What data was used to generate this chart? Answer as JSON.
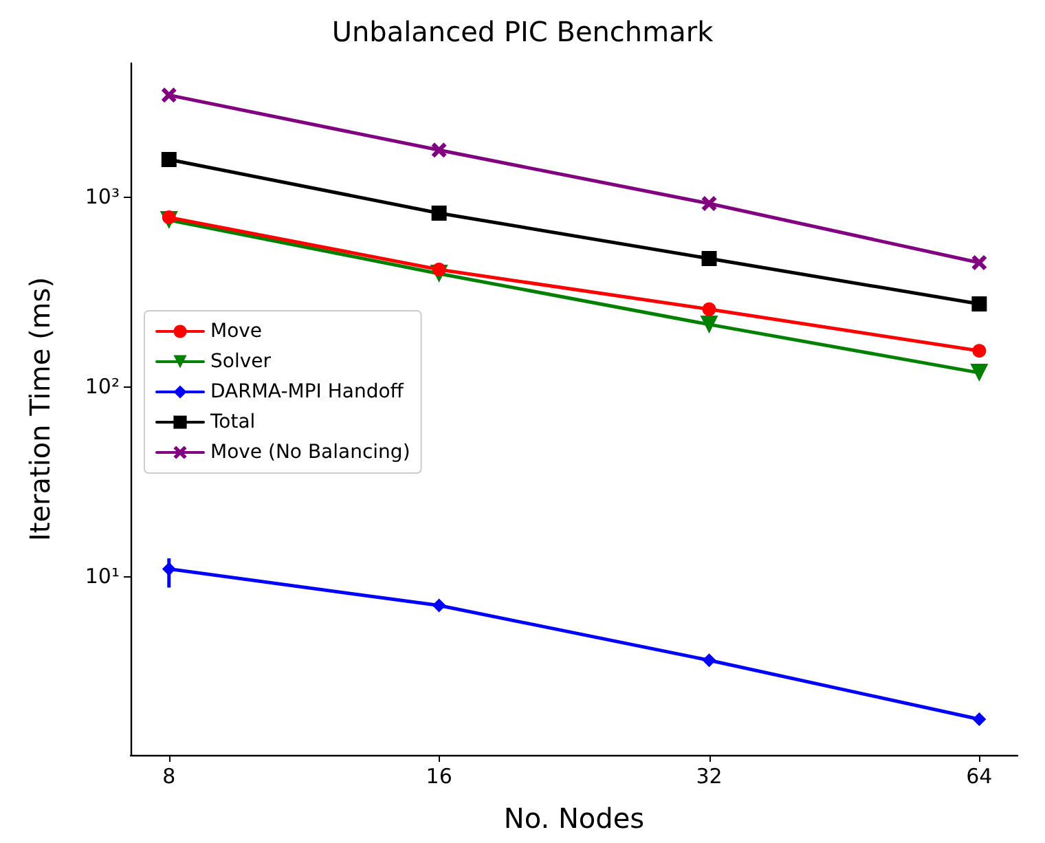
{
  "chart_data": {
    "type": "line",
    "title": "Unbalanced PIC Benchmark",
    "xlabel": "No. Nodes",
    "ylabel": "Iteration Time (ms)",
    "x": [
      8,
      16,
      32,
      64
    ],
    "series": [
      {
        "name": "Move",
        "color": "#ff0000",
        "marker": "circle",
        "values": [
          778,
          413,
          255,
          154
        ]
      },
      {
        "name": "Solver",
        "color": "#008000",
        "marker": "triangle",
        "values": [
          753,
          393,
          212,
          118
        ]
      },
      {
        "name": "DARMA-MPI Handoff",
        "color": "#0000ff",
        "marker": "diamond",
        "values": [
          10.9,
          7.0,
          3.6,
          1.76
        ],
        "errors": [
          [
            8.7,
            12.4
          ],
          null,
          null,
          null
        ]
      },
      {
        "name": "Total",
        "color": "#000000",
        "marker": "square",
        "values": [
          1570,
          819,
          472,
          272
        ]
      },
      {
        "name": "Move (No Balancing)",
        "color": "#800080",
        "marker": "cross",
        "values": [
          3430,
          1760,
          920,
          449
        ]
      }
    ],
    "log": "xy",
    "xlim": [
      7.25,
      70.6
    ],
    "xticks": [
      8,
      16,
      32,
      64
    ],
    "ylim": [
      1.14,
      5050
    ],
    "yticks": [
      {
        "value": 10,
        "label": "10¹"
      },
      {
        "value": 100,
        "label": "10²"
      },
      {
        "value": 1000,
        "label": "10³"
      }
    ],
    "legend": "center left",
    "grid": false,
    "line_style": "solid"
  }
}
